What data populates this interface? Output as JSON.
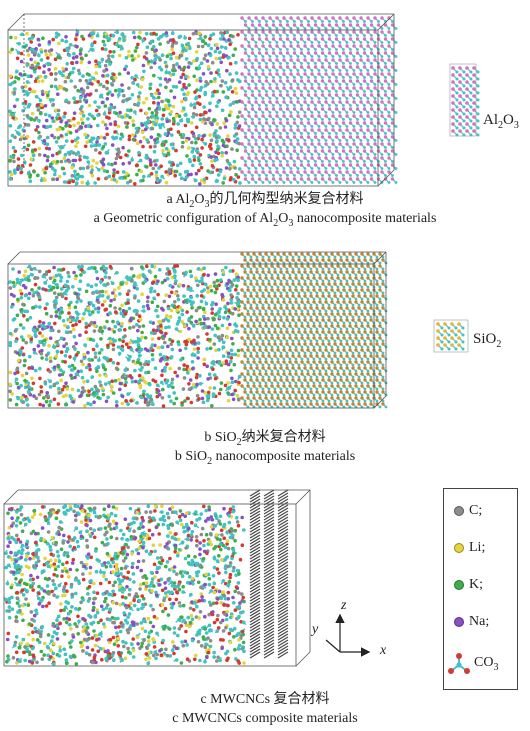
{
  "figure": {
    "panel_a": {
      "inset_label_main": "Al",
      "inset_label_sub1": "2",
      "inset_label_mid": "O",
      "inset_label_sub2": "3",
      "caption_cn_prefix": "a  Al",
      "caption_cn_sub1": "2",
      "caption_cn_mid": "O",
      "caption_cn_sub2": "3",
      "caption_cn_suffix": "的几何构型纳米复合材料",
      "caption_en_prefix": "a  Geometric configuration of Al",
      "caption_en_sub1": "2",
      "caption_en_mid": "O",
      "caption_en_sub2": "3",
      "caption_en_suffix": " nanocomposite materials"
    },
    "panel_b": {
      "inset_label_main": "SiO",
      "inset_label_sub": "2",
      "caption_cn_prefix": "b  SiO",
      "caption_cn_sub": "2",
      "caption_cn_suffix": "纳米复合材料",
      "caption_en_prefix": "b  SiO",
      "caption_en_sub": "2",
      "caption_en_suffix": " nanocomposite materials"
    },
    "panel_c": {
      "caption_cn": "c  MWCNCs 复合材料",
      "caption_en": "c  MWCNCs composite materials",
      "axes": {
        "z": "z",
        "y": "y",
        "x": "x"
      }
    },
    "legend": {
      "items": [
        {
          "label": "C;",
          "color": "#8c8c8c"
        },
        {
          "label": "Li;",
          "color": "#e6d43a"
        },
        {
          "label": "K;",
          "color": "#3fae4a"
        },
        {
          "label": "Na;",
          "color": "#8a4fc4"
        }
      ],
      "co3_main": "CO",
      "co3_sub": "3"
    },
    "colors": {
      "melt_cyan": "#3fc3c3",
      "alumina_pink": "#d86fc2",
      "silica_orange": "#c9822f",
      "carbon_gray": "#555555"
    }
  }
}
